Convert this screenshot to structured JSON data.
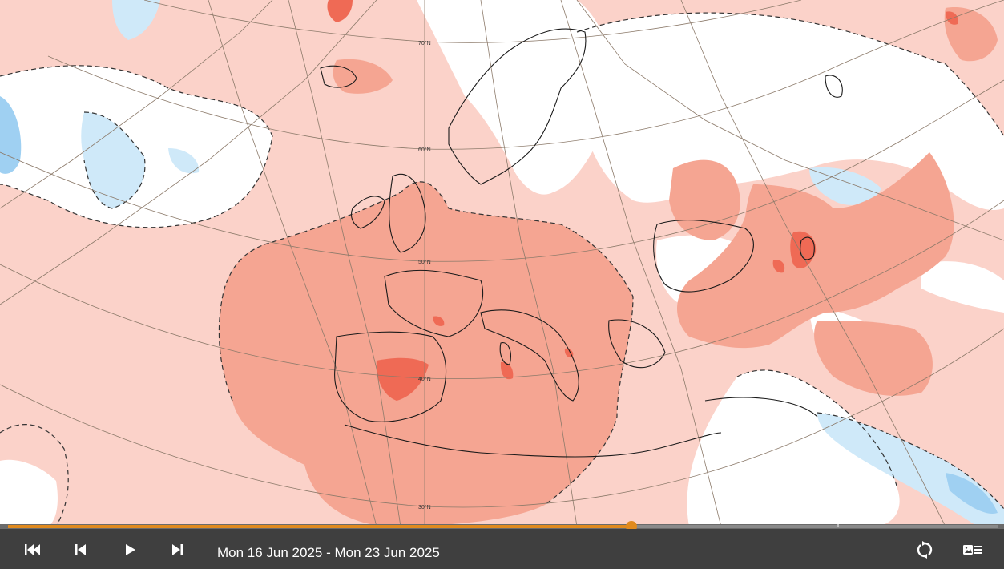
{
  "map": {
    "latitude_labels": [
      "70°N",
      "60°N",
      "50°N",
      "40°N",
      "30°N"
    ],
    "colors": {
      "warm_light": "#fbd2c9",
      "warm_medium": "#f5a592",
      "warm_strong": "#ef6a55",
      "warm_extreme": "#d8311f",
      "cool_light": "#cfe9f9",
      "cool_medium": "#9fd0f2",
      "neutral": "#ffffff",
      "coastline": "#1a1a1a",
      "graticule": "#8c7a6a"
    }
  },
  "player": {
    "date_range": "Mon 16 Jun 2025 - Mon 23 Jun 2025",
    "progress": 0.63,
    "accent_color": "#e08a1e",
    "icons": {
      "first": "skip-to-start-icon",
      "previous": "step-back-icon",
      "play": "play-icon",
      "next": "step-forward-icon",
      "loop": "loop-icon",
      "legend": "legend-toggle-icon"
    }
  }
}
